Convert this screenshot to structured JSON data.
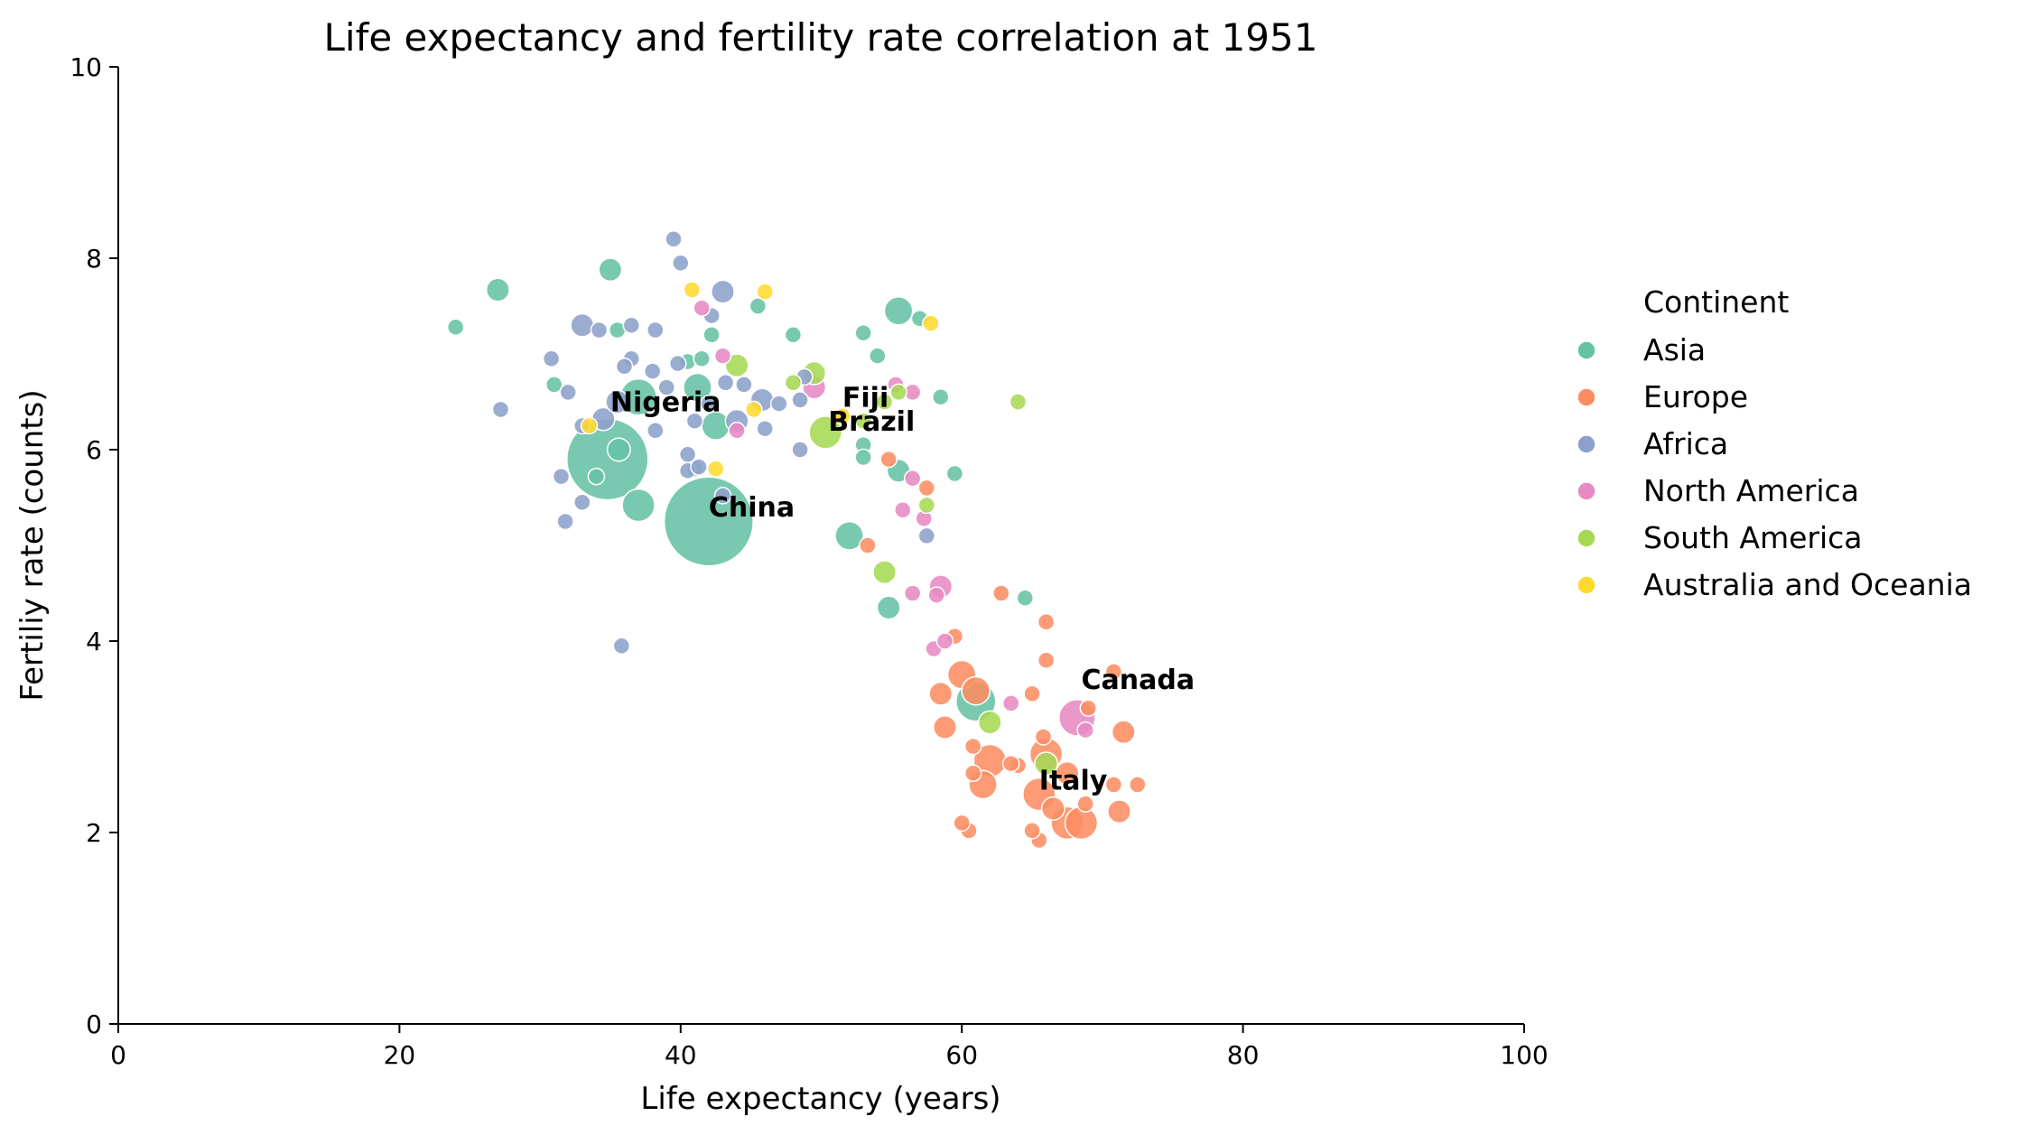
{
  "chart_data": {
    "type": "scatter",
    "title": "Life expectancy and fertility rate correlation at 1951",
    "xlabel": "Life expectancy (years)",
    "ylabel": "Fertiliy rate (counts)",
    "xlim": [
      0,
      100
    ],
    "ylim": [
      0,
      10
    ],
    "x_ticks": [
      "0",
      "20",
      "40",
      "60",
      "80",
      "100"
    ],
    "y_ticks": [
      "0",
      "2",
      "4",
      "6",
      "8",
      "10"
    ],
    "grid": false,
    "legend": {
      "title": "Continent",
      "placement": "right",
      "entries": [
        {
          "label": "Asia",
          "color": "#66c2a5"
        },
        {
          "label": "Europe",
          "color": "#fc8d62"
        },
        {
          "label": "Africa",
          "color": "#8da0cb"
        },
        {
          "label": "North America",
          "color": "#e78ac3"
        },
        {
          "label": "South America",
          "color": "#a6d854"
        },
        {
          "label": "Australia and Oceania",
          "color": "#ffd92f"
        }
      ]
    },
    "annotations": [
      {
        "text": "China",
        "x": 42.0,
        "y": 5.3
      },
      {
        "text": "Nigeria",
        "x": 35.0,
        "y": 6.4
      },
      {
        "text": "Fiji",
        "x": 51.5,
        "y": 6.45
      },
      {
        "text": "Brazil",
        "x": 50.5,
        "y": 6.2
      },
      {
        "text": "Canada",
        "x": 68.5,
        "y": 3.5
      },
      {
        "text": "Italy",
        "x": 65.5,
        "y": 2.45
      }
    ],
    "series": [
      {
        "name": "Asia",
        "points": [
          [
            42.0,
            5.25,
            30
          ],
          [
            34.8,
            5.9,
            25
          ],
          [
            37.0,
            5.42,
            4
          ],
          [
            61.0,
            3.37,
            6
          ],
          [
            55.5,
            7.45,
            3
          ],
          [
            52.0,
            5.1,
            3
          ],
          [
            37.0,
            6.55,
            5
          ],
          [
            41.2,
            6.65,
            3
          ],
          [
            42.5,
            6.25,
            3
          ],
          [
            24.0,
            7.28,
            1
          ],
          [
            27.0,
            7.67,
            2
          ],
          [
            31.0,
            6.68,
            1
          ],
          [
            35.0,
            7.88,
            2
          ],
          [
            35.5,
            7.25,
            1
          ],
          [
            42.2,
            7.2,
            1
          ],
          [
            45.5,
            7.5,
            1
          ],
          [
            48.0,
            7.2,
            1
          ],
          [
            53.0,
            7.22,
            1
          ],
          [
            54.0,
            6.98,
            1
          ],
          [
            57.0,
            7.37,
            1
          ],
          [
            58.5,
            6.55,
            1
          ],
          [
            53.0,
            6.05,
            1
          ],
          [
            53.0,
            5.92,
            1
          ],
          [
            55.5,
            5.78,
            2
          ],
          [
            59.5,
            5.75,
            1
          ],
          [
            54.8,
            4.35,
            2
          ],
          [
            64.5,
            4.45,
            1
          ],
          [
            41.0,
            5.8,
            1
          ],
          [
            35.6,
            6.0,
            2
          ],
          [
            34.0,
            5.72,
            1
          ],
          [
            40.5,
            6.92,
            1
          ],
          [
            41.5,
            6.95,
            1
          ]
        ]
      },
      {
        "name": "Europe",
        "points": [
          [
            67.5,
            2.1,
            4
          ],
          [
            68.5,
            2.1,
            4
          ],
          [
            65.5,
            2.4,
            4
          ],
          [
            66.0,
            2.82,
            4
          ],
          [
            62.0,
            2.75,
            4
          ],
          [
            61.5,
            2.5,
            3
          ],
          [
            60.0,
            3.65,
            3
          ],
          [
            61.0,
            3.48,
            3
          ],
          [
            58.8,
            3.1,
            2
          ],
          [
            58.5,
            3.45,
            2
          ],
          [
            71.5,
            3.05,
            2
          ],
          [
            72.5,
            2.5,
            1
          ],
          [
            71.2,
            2.22,
            2
          ],
          [
            70.8,
            2.5,
            1
          ],
          [
            70.8,
            3.68,
            1
          ],
          [
            66.0,
            4.2,
            1
          ],
          [
            66.0,
            3.8,
            1
          ],
          [
            62.8,
            4.5,
            1
          ],
          [
            59.5,
            4.05,
            1
          ],
          [
            65.0,
            3.45,
            1
          ],
          [
            65.5,
            1.92,
            1
          ],
          [
            65.0,
            2.02,
            1
          ],
          [
            60.5,
            2.02,
            1
          ],
          [
            60.0,
            2.1,
            1
          ],
          [
            66.5,
            2.25,
            2
          ],
          [
            64.0,
            2.7,
            1
          ],
          [
            60.8,
            2.9,
            1
          ],
          [
            63.5,
            2.72,
            1
          ],
          [
            67.5,
            2.62,
            2
          ],
          [
            60.8,
            2.62,
            1
          ],
          [
            53.3,
            5.0,
            1
          ],
          [
            57.5,
            5.6,
            1
          ],
          [
            54.8,
            5.9,
            1
          ],
          [
            65.8,
            3.0,
            1
          ],
          [
            69.0,
            3.3,
            1
          ],
          [
            68.8,
            2.3,
            1
          ]
        ]
      },
      {
        "name": "Africa",
        "points": [
          [
            33.0,
            7.3,
            2
          ],
          [
            34.2,
            7.25,
            1
          ],
          [
            36.5,
            7.3,
            1
          ],
          [
            38.2,
            7.25,
            1
          ],
          [
            39.5,
            8.2,
            1
          ],
          [
            40.0,
            7.95,
            1
          ],
          [
            43.0,
            7.65,
            2
          ],
          [
            42.2,
            7.4,
            1
          ],
          [
            36.5,
            6.95,
            1
          ],
          [
            30.8,
            6.95,
            1
          ],
          [
            27.2,
            6.42,
            1
          ],
          [
            32.0,
            6.6,
            1
          ],
          [
            33.0,
            6.25,
            1
          ],
          [
            34.5,
            6.32,
            2
          ],
          [
            35.5,
            6.5,
            2
          ],
          [
            36.0,
            6.87,
            1
          ],
          [
            38.0,
            6.82,
            1
          ],
          [
            39.0,
            6.65,
            1
          ],
          [
            39.8,
            6.9,
            1
          ],
          [
            41.0,
            6.3,
            1
          ],
          [
            42.0,
            6.48,
            1
          ],
          [
            43.2,
            6.7,
            1
          ],
          [
            44.0,
            6.3,
            2
          ],
          [
            44.5,
            6.68,
            1
          ],
          [
            45.8,
            6.52,
            2
          ],
          [
            46.0,
            6.22,
            1
          ],
          [
            47.0,
            6.48,
            1
          ],
          [
            48.5,
            6.52,
            1
          ],
          [
            48.8,
            6.76,
            1
          ],
          [
            48.5,
            6.0,
            1
          ],
          [
            40.5,
            5.95,
            1
          ],
          [
            40.5,
            5.78,
            1
          ],
          [
            41.3,
            5.82,
            1
          ],
          [
            43.0,
            5.52,
            1
          ],
          [
            31.5,
            5.72,
            1
          ],
          [
            31.8,
            5.25,
            1
          ],
          [
            35.8,
            3.95,
            1
          ],
          [
            57.5,
            5.1,
            1
          ],
          [
            33.0,
            5.45,
            1
          ],
          [
            38.2,
            6.2,
            1
          ]
        ]
      },
      {
        "name": "North America",
        "points": [
          [
            68.2,
            3.2,
            5
          ],
          [
            49.5,
            6.65,
            2
          ],
          [
            56.5,
            6.6,
            1
          ],
          [
            55.3,
            6.68,
            1
          ],
          [
            41.5,
            7.48,
            1
          ],
          [
            43.0,
            6.98,
            1
          ],
          [
            44.0,
            6.2,
            1
          ],
          [
            55.8,
            5.37,
            1
          ],
          [
            56.5,
            5.7,
            1
          ],
          [
            57.3,
            5.28,
            1
          ],
          [
            56.5,
            4.5,
            1
          ],
          [
            58.2,
            4.48,
            1
          ],
          [
            58.5,
            4.57,
            2
          ],
          [
            58.0,
            3.92,
            1
          ],
          [
            58.8,
            4.0,
            1
          ],
          [
            63.5,
            3.35,
            1
          ],
          [
            68.8,
            3.07,
            1
          ]
        ]
      },
      {
        "name": "South America",
        "points": [
          [
            50.3,
            6.18,
            4
          ],
          [
            44.0,
            6.88,
            2
          ],
          [
            48.0,
            6.7,
            1
          ],
          [
            49.5,
            6.8,
            2
          ],
          [
            54.5,
            6.5,
            1
          ],
          [
            55.5,
            6.6,
            1
          ],
          [
            53.0,
            6.3,
            1
          ],
          [
            54.5,
            4.72,
            2
          ],
          [
            57.5,
            5.42,
            1
          ],
          [
            62.0,
            3.15,
            2
          ],
          [
            66.0,
            2.72,
            2
          ],
          [
            64.0,
            6.5,
            1
          ]
        ]
      },
      {
        "name": "Australia and Oceania",
        "points": [
          [
            40.8,
            7.67,
            1
          ],
          [
            46.0,
            7.65,
            1
          ],
          [
            57.8,
            7.32,
            1
          ],
          [
            33.5,
            6.25,
            1
          ],
          [
            45.2,
            6.42,
            1
          ],
          [
            42.5,
            5.8,
            1
          ],
          [
            51.5,
            6.35,
            1
          ]
        ]
      }
    ]
  }
}
